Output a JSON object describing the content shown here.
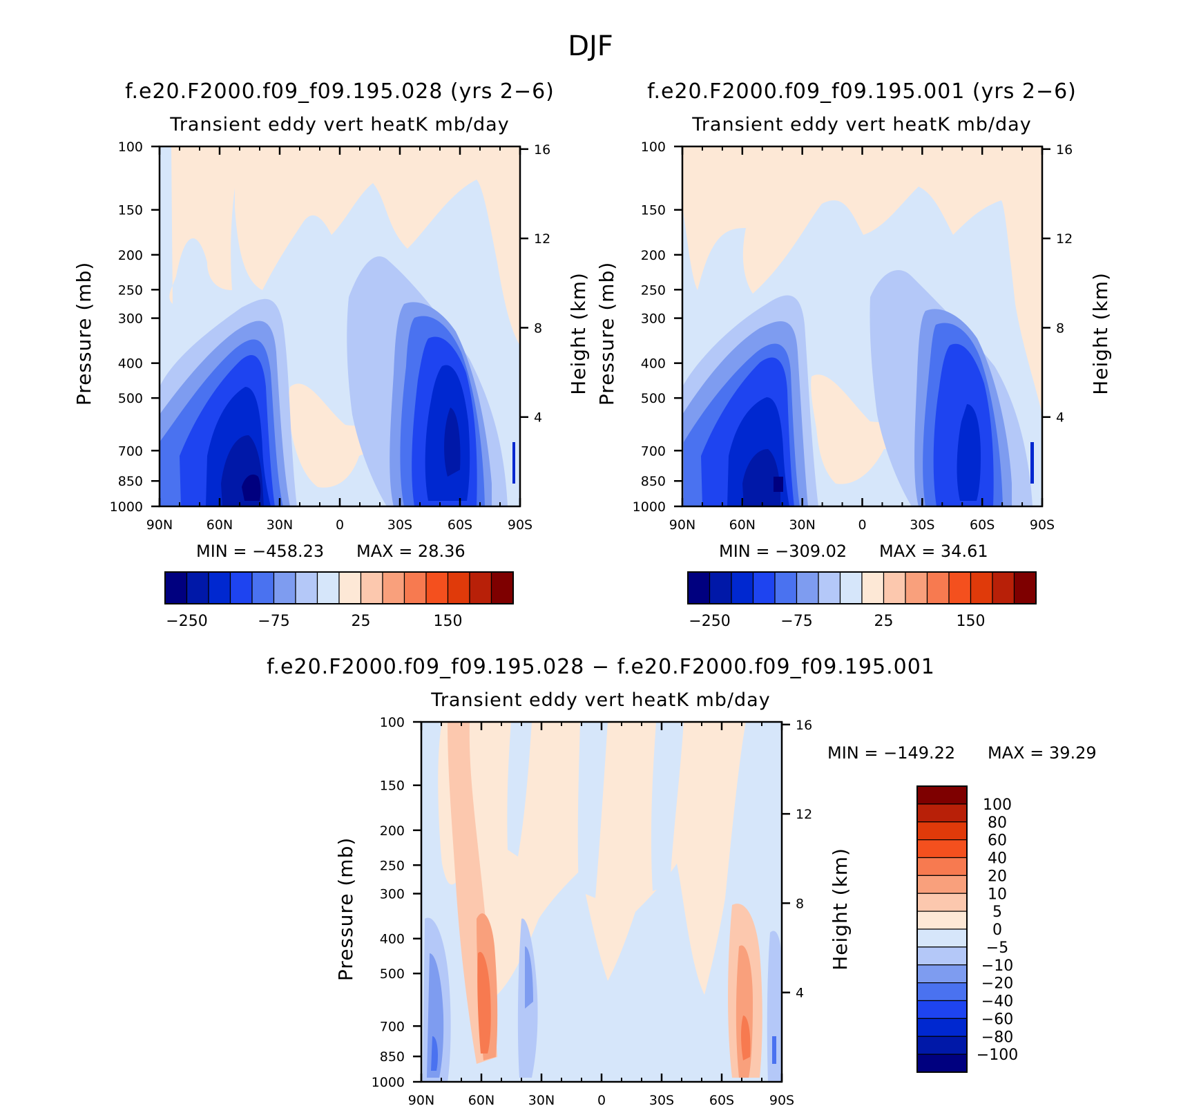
{
  "figure": {
    "season_title": "DJF"
  },
  "colors": {
    "level_fill": [
      "#00007f",
      "#0018a8",
      "#0028d0",
      "#1e44f0",
      "#4a72f0",
      "#7e9cf0",
      "#b4c8f8",
      "#d6e6fa",
      "#fde8d6",
      "#fcc8ae",
      "#f9a07c",
      "#f77a50",
      "#f4501e",
      "#e03a0a",
      "#b82008",
      "#7e0000"
    ],
    "axis": "#000000"
  },
  "chart_data": [
    {
      "type": "heatmap",
      "id": "panel-028",
      "title": "f.e20.F2000.f09_f09.195.028 (yrs 2−6)",
      "subtitle": "Transient eddy vert heatK mb/day",
      "ylabel": "Pressure (mb)",
      "ylabel_right": "Height (km)",
      "x_ticks": [
        "90N",
        "60N",
        "30N",
        "0",
        "30S",
        "60S",
        "90S"
      ],
      "x_tick_lat": [
        90,
        60,
        30,
        0,
        -30,
        -60,
        -90
      ],
      "y_ticks": [
        100,
        150,
        200,
        250,
        300,
        400,
        500,
        700,
        850,
        1000
      ],
      "y_ticks_right": [
        16,
        12,
        8,
        4
      ],
      "ylim": [
        1000,
        100
      ],
      "xlim": [
        90,
        -90
      ],
      "min_label": "MIN = −458.23",
      "max_label": "MAX =   28.36",
      "min": -458.23,
      "max": 28.36,
      "colorbar_labels": [
        "−250",
        "−75",
        "25",
        "150"
      ],
      "colorbar_label_index": [
        0,
        4,
        8,
        12
      ],
      "features": [
        {
          "lat": 45,
          "p": 800,
          "value": -400
        },
        {
          "lat": 68,
          "p": 780,
          "value": -180
        },
        {
          "lat": -55,
          "p": 750,
          "value": -200
        },
        {
          "lat": 20,
          "p": 620,
          "value": 10
        },
        {
          "lat": 5,
          "p": 650,
          "value": 10
        }
      ]
    },
    {
      "type": "heatmap",
      "id": "panel-001",
      "title": "f.e20.F2000.f09_f09.195.001 (yrs 2−6)",
      "subtitle": "Transient eddy vert heatK mb/day",
      "ylabel": "Pressure (mb)",
      "ylabel_right": "Height (km)",
      "x_ticks": [
        "90N",
        "60N",
        "30N",
        "0",
        "30S",
        "60S",
        "90S"
      ],
      "x_tick_lat": [
        90,
        60,
        30,
        0,
        -30,
        -60,
        -90
      ],
      "y_ticks": [
        100,
        150,
        200,
        250,
        300,
        400,
        500,
        700,
        850,
        1000
      ],
      "y_ticks_right": [
        16,
        12,
        8,
        4
      ],
      "ylim": [
        1000,
        100
      ],
      "xlim": [
        90,
        -90
      ],
      "min_label": "MIN = −309.02",
      "max_label": "MAX =   34.61",
      "min": -309.02,
      "max": 34.61,
      "colorbar_labels": [
        "−250",
        "−75",
        "25",
        "150"
      ],
      "colorbar_label_index": [
        0,
        4,
        8,
        12
      ],
      "features": [
        {
          "lat": 45,
          "p": 800,
          "value": -300
        },
        {
          "lat": -55,
          "p": 750,
          "value": -180
        },
        {
          "lat": 18,
          "p": 620,
          "value": 10
        }
      ]
    },
    {
      "type": "heatmap",
      "id": "panel-diff",
      "title": "f.e20.F2000.f09_f09.195.028 − f.e20.F2000.f09_f09.195.001",
      "subtitle": "Transient eddy vert heatK mb/day",
      "ylabel": "Pressure (mb)",
      "ylabel_right": "Height (km)",
      "x_ticks": [
        "90N",
        "60N",
        "30N",
        "0",
        "30S",
        "60S",
        "90S"
      ],
      "x_tick_lat": [
        90,
        60,
        30,
        0,
        -30,
        -60,
        -90
      ],
      "y_ticks": [
        100,
        150,
        200,
        250,
        300,
        400,
        500,
        700,
        850,
        1000
      ],
      "y_ticks_right": [
        16,
        12,
        8,
        4
      ],
      "ylim": [
        1000,
        100
      ],
      "xlim": [
        90,
        -90
      ],
      "min_label": "MIN = −149.22",
      "max_label": "MAX =   39.29",
      "min": -149.22,
      "max": 39.29,
      "colorbar_levels": [
        "100",
        "80",
        "60",
        "40",
        "20",
        "10",
        "5",
        "0",
        "−5",
        "−10",
        "−20",
        "−40",
        "−60",
        "−80",
        "−100"
      ],
      "features": [
        {
          "lat": 60,
          "p": 700,
          "value": 30
        },
        {
          "lat": -70,
          "p": 700,
          "value": 20
        },
        {
          "lat": 82,
          "p": 800,
          "value": -40
        },
        {
          "lat": 40,
          "p": 700,
          "value": -20
        }
      ]
    }
  ]
}
